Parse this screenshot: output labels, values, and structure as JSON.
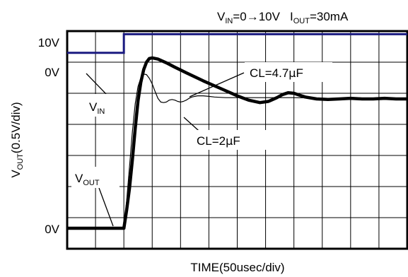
{
  "chart_data": {
    "type": "line",
    "title": {
      "vin_main": "V",
      "vin_sub": "IN",
      "vin_rest": "=0→10V",
      "iout_main": "I",
      "iout_sub": "OUT",
      "iout_rest": "=30mA"
    },
    "xlabel": "TIME(50usec/div)",
    "ylabel": {
      "main": "V",
      "sub": "OUT",
      "rest": "(0.5V/div)"
    },
    "x_divisions": 12,
    "y_divisions": 7,
    "x_range_usec": [
      0,
      600
    ],
    "grid": true,
    "level_labels": {
      "vin_high": "10V",
      "vin_low": "0V",
      "vout_zero": "0V"
    },
    "vout_units": "V (0.5V/div)",
    "vin": {
      "name_main": "V",
      "name_sub": "IN",
      "color": "#1a1a80",
      "low_div": 6.3,
      "high_div": 6.9,
      "step_usec": 100
    },
    "series": [
      {
        "name": "CL=4.7μF",
        "label_main": "CL=4.7",
        "label_unit": "μ",
        "label_rest": "F",
        "color": "#000000",
        "x": [
          0,
          100,
          105,
          110,
          115,
          120,
          125,
          130,
          135,
          140,
          145,
          150,
          160,
          175,
          190,
          210,
          240,
          270,
          300,
          320,
          340,
          355,
          370,
          380,
          390,
          400,
          410,
          420,
          440,
          460,
          480,
          500,
          520,
          540,
          560,
          580,
          600
        ],
        "y": [
          0.0,
          0.0,
          0.3,
          0.65,
          1.1,
          1.6,
          2.05,
          2.35,
          2.55,
          2.67,
          2.73,
          2.74,
          2.72,
          2.66,
          2.59,
          2.5,
          2.37,
          2.25,
          2.13,
          2.06,
          2.02,
          2.04,
          2.1,
          2.15,
          2.18,
          2.17,
          2.14,
          2.11,
          2.08,
          2.07,
          2.08,
          2.09,
          2.08,
          2.08,
          2.09,
          2.08,
          2.08
        ]
      },
      {
        "name": "CL=2μF",
        "label_main": "CL=2",
        "label_unit": "μ",
        "label_rest": "F",
        "color": "#000000",
        "x": [
          0,
          100,
          105,
          110,
          115,
          120,
          125,
          130,
          135,
          140,
          145,
          150,
          155,
          160,
          165,
          170,
          175,
          180,
          185,
          190,
          195,
          200,
          205,
          210,
          215,
          220,
          225,
          230,
          240,
          250,
          260,
          280,
          300,
          340,
          400,
          460,
          520,
          600
        ],
        "y": [
          0.0,
          0.0,
          0.45,
          1.0,
          1.55,
          2.0,
          2.28,
          2.42,
          2.48,
          2.47,
          2.41,
          2.32,
          2.2,
          2.09,
          2.03,
          2.02,
          2.03,
          2.06,
          2.07,
          2.06,
          2.04,
          2.03,
          2.04,
          2.06,
          2.09,
          2.11,
          2.12,
          2.13,
          2.13,
          2.12,
          2.11,
          2.1,
          2.1,
          2.1,
          2.1,
          2.09,
          2.09,
          2.09
        ]
      }
    ],
    "annotations": {
      "vout_main": "V",
      "vout_sub": "OUT"
    }
  }
}
